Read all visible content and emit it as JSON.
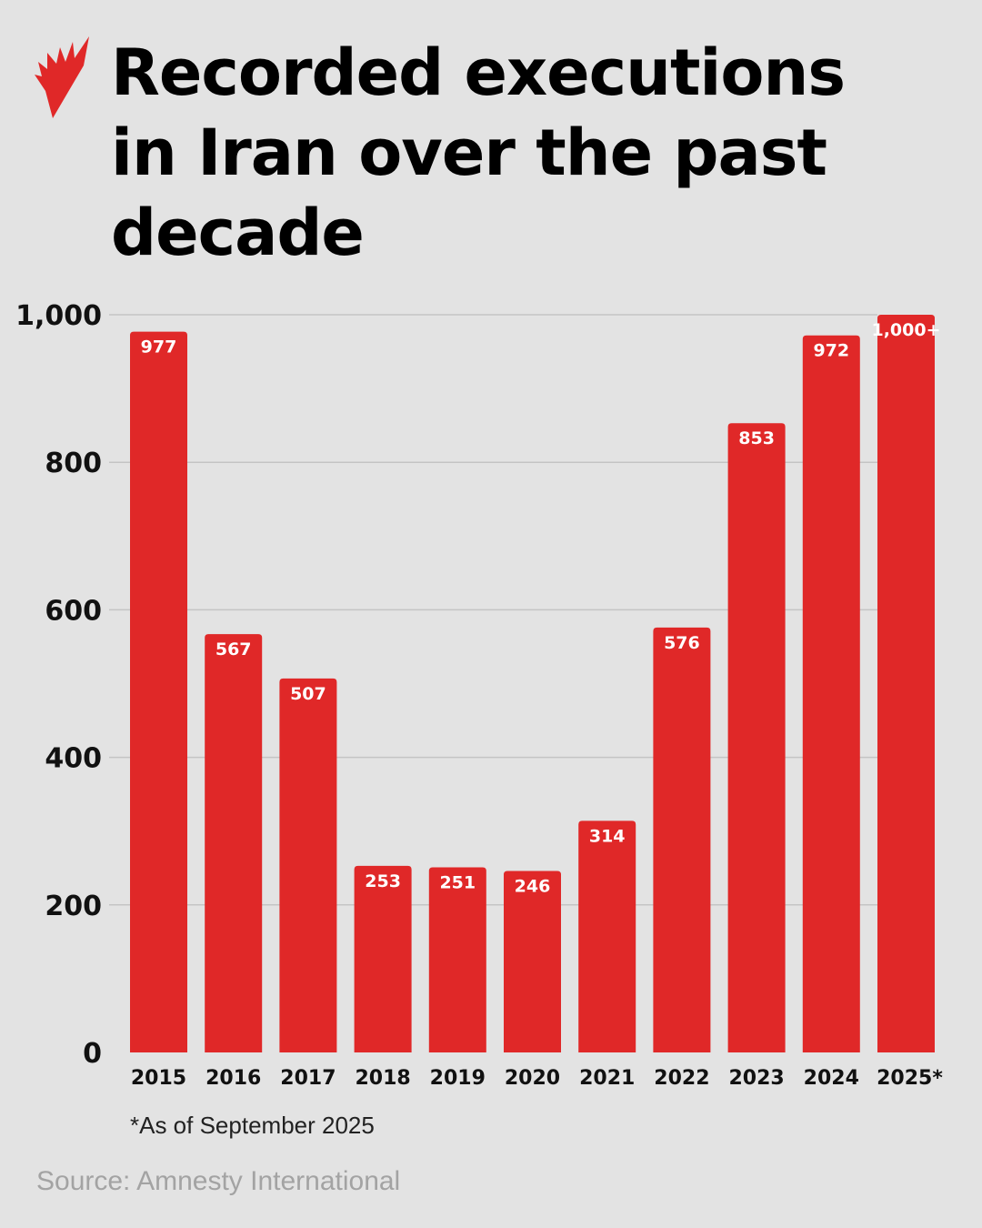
{
  "title": "Recorded executions in Iran over the past decade",
  "logo": "SBS-logo",
  "note": "*As of September 2025",
  "source": "Source: Amnesty International",
  "chart_data": {
    "type": "bar",
    "title": "Recorded executions in Iran over the past decade",
    "categories": [
      "2015",
      "2016",
      "2017",
      "2018",
      "2019",
      "2020",
      "2021",
      "2022",
      "2023",
      "2024",
      "2025*"
    ],
    "values": [
      977,
      567,
      507,
      253,
      251,
      246,
      314,
      576,
      853,
      972,
      1000
    ],
    "data_labels": [
      "977",
      "567",
      "507",
      "253",
      "251",
      "246",
      "314",
      "576",
      "853",
      "972",
      "1,000+"
    ],
    "ylim": [
      0,
      1000
    ],
    "yticks": [
      0,
      200,
      400,
      600,
      800,
      1000
    ],
    "ytick_labels": [
      "0",
      "200",
      "400",
      "600",
      "800",
      "1,000"
    ],
    "grid": true,
    "legend": "none",
    "bar_color": "#e02828"
  }
}
